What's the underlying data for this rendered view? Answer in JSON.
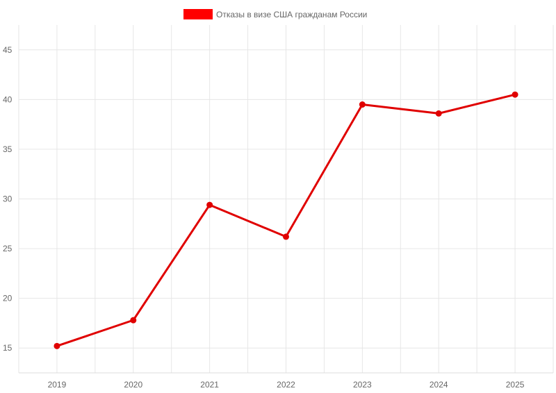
{
  "chart_data": {
    "type": "line",
    "title": "",
    "xlabel": "",
    "ylabel": "",
    "categories": [
      "2019",
      "2020",
      "2021",
      "2022",
      "2023",
      "2024",
      "2025"
    ],
    "series": [
      {
        "name": "Отказы в визе США гражданам России",
        "color": "#e00000",
        "values": [
          15.2,
          17.8,
          29.4,
          26.2,
          39.5,
          38.6,
          40.5
        ]
      }
    ],
    "ylim": [
      12.5,
      47.5
    ],
    "yticks": [
      "15",
      "20",
      "25",
      "30",
      "35",
      "40",
      "45"
    ],
    "grid": true,
    "legend": "top-center",
    "legend_color": "#ff0000"
  }
}
